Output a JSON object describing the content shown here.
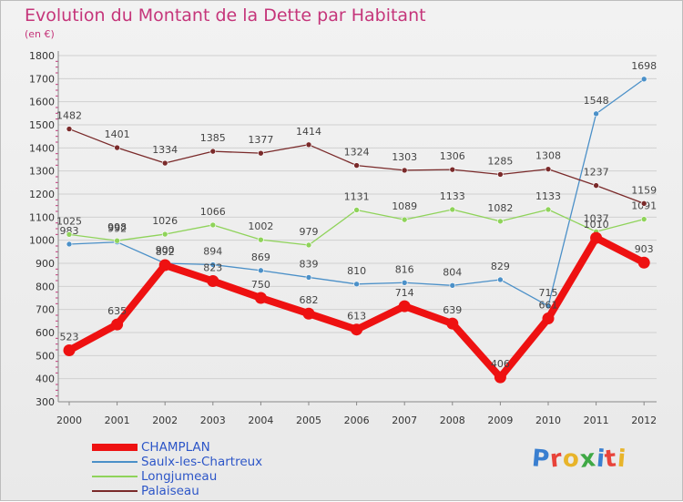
{
  "title": "Evolution du Montant de la Dette par Habitant",
  "subtitle": "(en €)",
  "logo": {
    "letters": [
      "P",
      "r",
      "o",
      "x",
      "i",
      "t",
      "i"
    ],
    "colors": [
      "#3a7fd0",
      "#e8433a",
      "#e8b42a",
      "#3fa845",
      "#3a7fd0",
      "#e8433a",
      "#e8b42a"
    ]
  },
  "chart_data": {
    "type": "line",
    "x": [
      "2000",
      "2001",
      "2002",
      "2003",
      "2004",
      "2005",
      "2006",
      "2007",
      "2008",
      "2009",
      "2010",
      "2011",
      "2012"
    ],
    "ylim": [
      300,
      1800
    ],
    "yticks": [
      "300",
      "400",
      "500",
      "600",
      "700",
      "800",
      "900",
      "1000",
      "1100",
      "1200",
      "1300",
      "1400",
      "1500",
      "1600",
      "1700",
      "1800"
    ],
    "grid": true,
    "legend_position": "bottom-left",
    "series": [
      {
        "name": "CHAMPLAN",
        "color": "#ee1111",
        "values": [
          523,
          635,
          892,
          823,
          750,
          682,
          613,
          714,
          639,
          406,
          661,
          1010,
          903
        ],
        "labels": [
          "523",
          "635",
          "892",
          "823",
          "750",
          "682",
          "613",
          "714",
          "639",
          "406",
          "661",
          "1010",
          "903"
        ]
      },
      {
        "name": "Saulx-les-Chartreux",
        "color": "#4b90c8",
        "values": [
          983,
          992,
          900,
          894,
          869,
          839,
          810,
          816,
          804,
          829,
          715,
          1548,
          1698
        ],
        "labels": [
          "983",
          "992",
          "900",
          "894",
          "869",
          "839",
          "810",
          "816",
          "804",
          "829",
          "715",
          "1548",
          "1698"
        ]
      },
      {
        "name": "Longjumeau",
        "color": "#8fd35a",
        "values": [
          1025,
          998,
          1026,
          1066,
          1002,
          979,
          1131,
          1089,
          1133,
          1082,
          1133,
          1037,
          1091
        ],
        "labels": [
          "1025",
          "998",
          "1026",
          "1066",
          "1002",
          "979",
          "1131",
          "1089",
          "1133",
          "1082",
          "1133",
          "1037",
          "1091"
        ]
      },
      {
        "name": "Palaiseau",
        "color": "#7a2a2a",
        "values": [
          1482,
          1401,
          1334,
          1385,
          1377,
          1414,
          1324,
          1303,
          1306,
          1285,
          1308,
          1237,
          1159
        ],
        "labels": [
          "1482",
          "1401",
          "1334",
          "1385",
          "1377",
          "1414",
          "1324",
          "1303",
          "1306",
          "1285",
          "1308",
          "1237",
          "1159"
        ]
      }
    ]
  }
}
